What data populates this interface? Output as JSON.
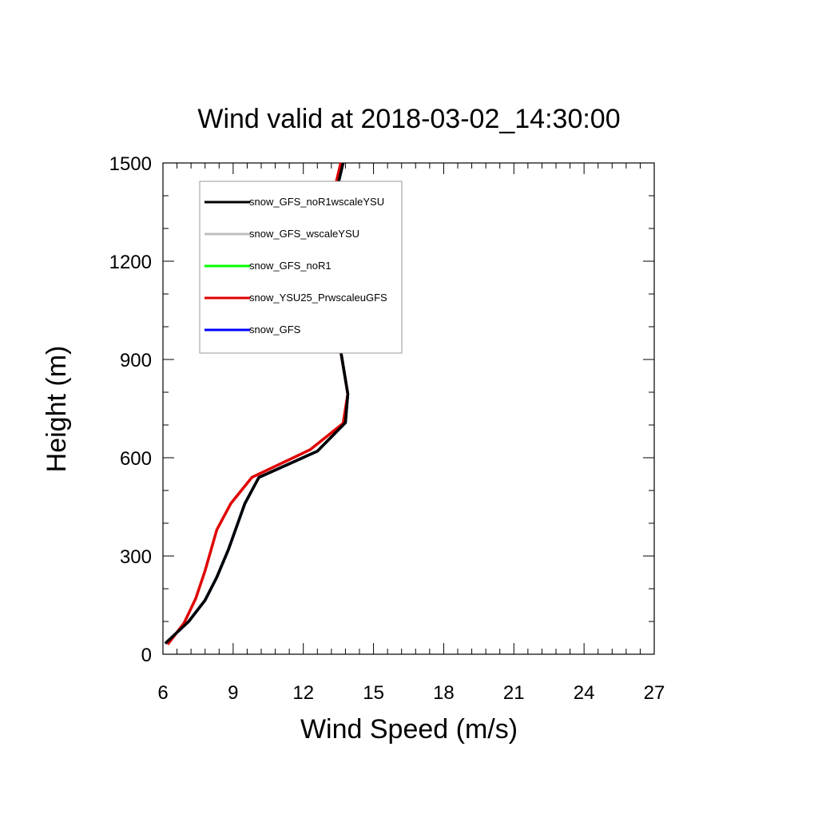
{
  "chart_data": {
    "type": "line",
    "title": "Wind valid at 2018-03-02_14:30:00",
    "xlabel": "Wind Speed (m/s)",
    "ylabel": "Height (m)",
    "xlim": [
      6,
      27
    ],
    "ylim": [
      0,
      1500
    ],
    "xticks": [
      "6",
      "9",
      "12",
      "15",
      "18",
      "21",
      "24",
      "27"
    ],
    "yticks": [
      "0",
      "300",
      "600",
      "900",
      "1200",
      "1500"
    ],
    "legend_position": "top-left",
    "series": [
      {
        "name": "snow_GFS_noR1wscaleYSU",
        "color": "#000000",
        "points": [
          [
            6.1,
            33
          ],
          [
            7.1,
            100
          ],
          [
            7.8,
            165
          ],
          [
            8.3,
            235
          ],
          [
            8.8,
            320
          ],
          [
            9.5,
            460
          ],
          [
            10.1,
            540
          ],
          [
            12.6,
            620
          ],
          [
            13.8,
            707
          ],
          [
            13.9,
            795
          ],
          [
            13.6,
            925
          ],
          [
            13.2,
            1110
          ],
          [
            13.0,
            1210
          ],
          [
            13.2,
            1350
          ],
          [
            13.7,
            1500
          ]
        ]
      },
      {
        "name": "snow_GFS_wscaleYSU",
        "color": "#c0c0c0",
        "points": [
          [
            6.1,
            33
          ],
          [
            7.1,
            100
          ],
          [
            7.8,
            165
          ],
          [
            8.3,
            235
          ],
          [
            8.8,
            320
          ],
          [
            9.5,
            460
          ],
          [
            10.1,
            540
          ],
          [
            12.6,
            620
          ],
          [
            13.8,
            707
          ],
          [
            13.9,
            795
          ],
          [
            13.6,
            925
          ],
          [
            13.2,
            1110
          ],
          [
            13.0,
            1210
          ],
          [
            13.2,
            1350
          ],
          [
            13.7,
            1500
          ]
        ]
      },
      {
        "name": "snow_GFS_noR1",
        "color": "#00ff00",
        "points": [
          [
            6.1,
            33
          ],
          [
            7.1,
            100
          ],
          [
            7.8,
            165
          ],
          [
            8.3,
            235
          ],
          [
            8.8,
            320
          ],
          [
            9.5,
            460
          ],
          [
            10.1,
            540
          ],
          [
            12.6,
            620
          ],
          [
            13.8,
            707
          ],
          [
            13.9,
            795
          ],
          [
            13.6,
            925
          ],
          [
            13.2,
            1110
          ],
          [
            13.0,
            1210
          ],
          [
            13.2,
            1350
          ],
          [
            13.7,
            1500
          ]
        ]
      },
      {
        "name": "snow_YSU25_PrwscaleuGFS",
        "color": "#e00000",
        "points": [
          [
            6.2,
            30
          ],
          [
            6.9,
            95
          ],
          [
            7.4,
            170
          ],
          [
            7.8,
            255
          ],
          [
            8.3,
            380
          ],
          [
            8.9,
            460
          ],
          [
            9.8,
            540
          ],
          [
            12.3,
            625
          ],
          [
            13.7,
            705
          ],
          [
            13.9,
            795
          ],
          [
            13.6,
            925
          ],
          [
            13.2,
            1110
          ],
          [
            12.9,
            1210
          ],
          [
            13.1,
            1350
          ],
          [
            13.6,
            1500
          ]
        ]
      },
      {
        "name": "snow_GFS",
        "color": "#0000ff",
        "points": [
          [
            6.1,
            33
          ],
          [
            7.1,
            100
          ],
          [
            7.8,
            165
          ],
          [
            8.3,
            235
          ],
          [
            8.8,
            320
          ],
          [
            9.5,
            460
          ],
          [
            10.1,
            540
          ],
          [
            12.6,
            620
          ],
          [
            13.8,
            707
          ],
          [
            13.9,
            795
          ],
          [
            13.6,
            925
          ],
          [
            13.2,
            1110
          ],
          [
            13.0,
            1210
          ],
          [
            13.2,
            1350
          ],
          [
            13.7,
            1500
          ]
        ]
      }
    ],
    "draw_order": [
      1,
      2,
      4,
      3,
      0
    ]
  }
}
